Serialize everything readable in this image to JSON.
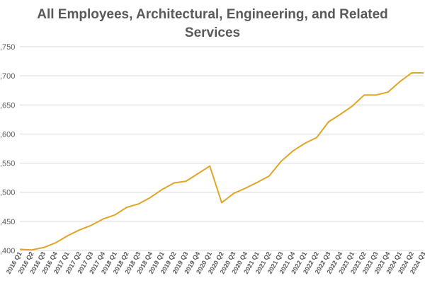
{
  "chart_data": {
    "type": "line",
    "title_line1": "All Employees, Architectural, Engineering, and Related",
    "title_line2": "Services",
    "xlabel": "",
    "ylabel": "",
    "ylim": [
      1400,
      1750
    ],
    "yticks": [
      ",400",
      ",450",
      ",500",
      ",550",
      ",600",
      ",650",
      ",700",
      ",750"
    ],
    "ytick_values": [
      1400,
      1450,
      1500,
      1550,
      1600,
      1650,
      1700,
      1750
    ],
    "grid": true,
    "line_color": "#E0A526",
    "categories": [
      "2016 Q1",
      "2016 Q2",
      "2016 Q3",
      "2016 Q4",
      "2017 Q1",
      "2017 Q2",
      "2017 Q3",
      "2017 Q4",
      "2018 Q1",
      "2018 Q2",
      "2018 Q3",
      "2018 Q4",
      "2019 Q1",
      "2019 Q2",
      "2019 Q3",
      "2019 Q4",
      "2020 Q1",
      "2020 Q2",
      "2020 Q3",
      "2020 Q4",
      "2021 Q1",
      "2021 Q2",
      "2021 Q3",
      "2021 Q4",
      "2022 Q1",
      "2022 Q2",
      "2022 Q3",
      "2022 Q4",
      "2023 Q1",
      "2023 Q2",
      "2023 Q3",
      "2023 Q4",
      "2024 Q1",
      "2024 Q2",
      "2024 Q3"
    ],
    "series": [
      {
        "values": [
          1402,
          1401,
          1405,
          1413,
          1425,
          1435,
          1443,
          1454,
          1461,
          1474,
          1480,
          1491,
          1505,
          1516,
          1519,
          1532,
          1545,
          1482,
          1498,
          1507,
          1517,
          1528,
          1553,
          1571,
          1584,
          1594,
          1621,
          1634,
          1648,
          1667,
          1667,
          1672,
          1690,
          1705,
          1705
        ]
      }
    ]
  }
}
